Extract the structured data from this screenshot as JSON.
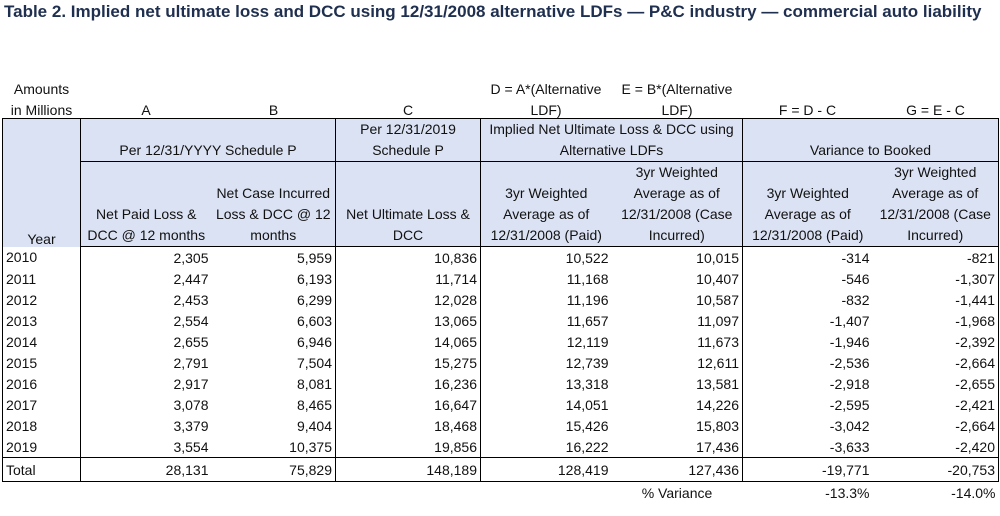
{
  "title": "Table 2. Implied net ultimate loss and DCC using 12/31/2008 alternative LDFs — P&C industry — commercial auto liability",
  "header": {
    "amounts_line1": "Amounts",
    "amounts_line2": "in Millions",
    "col_a": "A",
    "col_b": "B",
    "col_c": "C",
    "col_d_line1": "D = A*(Alternative",
    "col_d_line2": "LDF)",
    "col_e_line1": "E = B*(Alternative",
    "col_e_line2": "LDF)",
    "col_f": "F = D - C",
    "col_g": "G = E - C",
    "group_schedule_p": "Per 12/31/YYYY Schedule P",
    "group_c": "Per 12/31/2019 Schedule P",
    "group_implied": "Implied Net Ultimate Loss & DCC using Alternative LDFs",
    "group_variance": "Variance to Booked",
    "year": "Year",
    "sub_a": "Net Paid Loss & DCC @ 12 months",
    "sub_b": "Net Case Incurred Loss & DCC @ 12 months",
    "sub_c": "Net Ultimate Loss & DCC",
    "sub_d": "3yr Weighted Average as of 12/31/2008 (Paid)",
    "sub_e": "3yr Weighted Average as of 12/31/2008 (Case Incurred)",
    "sub_f": "3yr Weighted Average as of 12/31/2008 (Paid)",
    "sub_g": "3yr Weighted Average as of 12/31/2008 (Case Incurred)"
  },
  "rows": [
    {
      "year": "2010",
      "a": "2,305",
      "b": "5,959",
      "c": "10,836",
      "d": "10,522",
      "e": "10,015",
      "f": "-314",
      "g": "-821"
    },
    {
      "year": "2011",
      "a": "2,447",
      "b": "6,193",
      "c": "11,714",
      "d": "11,168",
      "e": "10,407",
      "f": "-546",
      "g": "-1,307"
    },
    {
      "year": "2012",
      "a": "2,453",
      "b": "6,299",
      "c": "12,028",
      "d": "11,196",
      "e": "10,587",
      "f": "-832",
      "g": "-1,441"
    },
    {
      "year": "2013",
      "a": "2,554",
      "b": "6,603",
      "c": "13,065",
      "d": "11,657",
      "e": "11,097",
      "f": "-1,407",
      "g": "-1,968"
    },
    {
      "year": "2014",
      "a": "2,655",
      "b": "6,946",
      "c": "14,065",
      "d": "12,119",
      "e": "11,673",
      "f": "-1,946",
      "g": "-2,392"
    },
    {
      "year": "2015",
      "a": "2,791",
      "b": "7,504",
      "c": "15,275",
      "d": "12,739",
      "e": "12,611",
      "f": "-2,536",
      "g": "-2,664"
    },
    {
      "year": "2016",
      "a": "2,917",
      "b": "8,081",
      "c": "16,236",
      "d": "13,318",
      "e": "13,581",
      "f": "-2,918",
      "g": "-2,655"
    },
    {
      "year": "2017",
      "a": "3,078",
      "b": "8,465",
      "c": "16,647",
      "d": "14,051",
      "e": "14,226",
      "f": "-2,595",
      "g": "-2,421"
    },
    {
      "year": "2018",
      "a": "3,379",
      "b": "9,404",
      "c": "18,468",
      "d": "15,426",
      "e": "15,803",
      "f": "-3,042",
      "g": "-2,664"
    },
    {
      "year": "2019",
      "a": "3,554",
      "b": "10,375",
      "c": "19,856",
      "d": "16,222",
      "e": "17,436",
      "f": "-3,633",
      "g": "-2,420"
    }
  ],
  "total": {
    "label": "Total",
    "a": "28,131",
    "b": "75,829",
    "c": "148,189",
    "d": "128,419",
    "e": "127,436",
    "f": "-19,771",
    "g": "-20,753"
  },
  "variance": {
    "label": "% Variance",
    "f": "-13.3%",
    "g": "-14.0%"
  }
}
